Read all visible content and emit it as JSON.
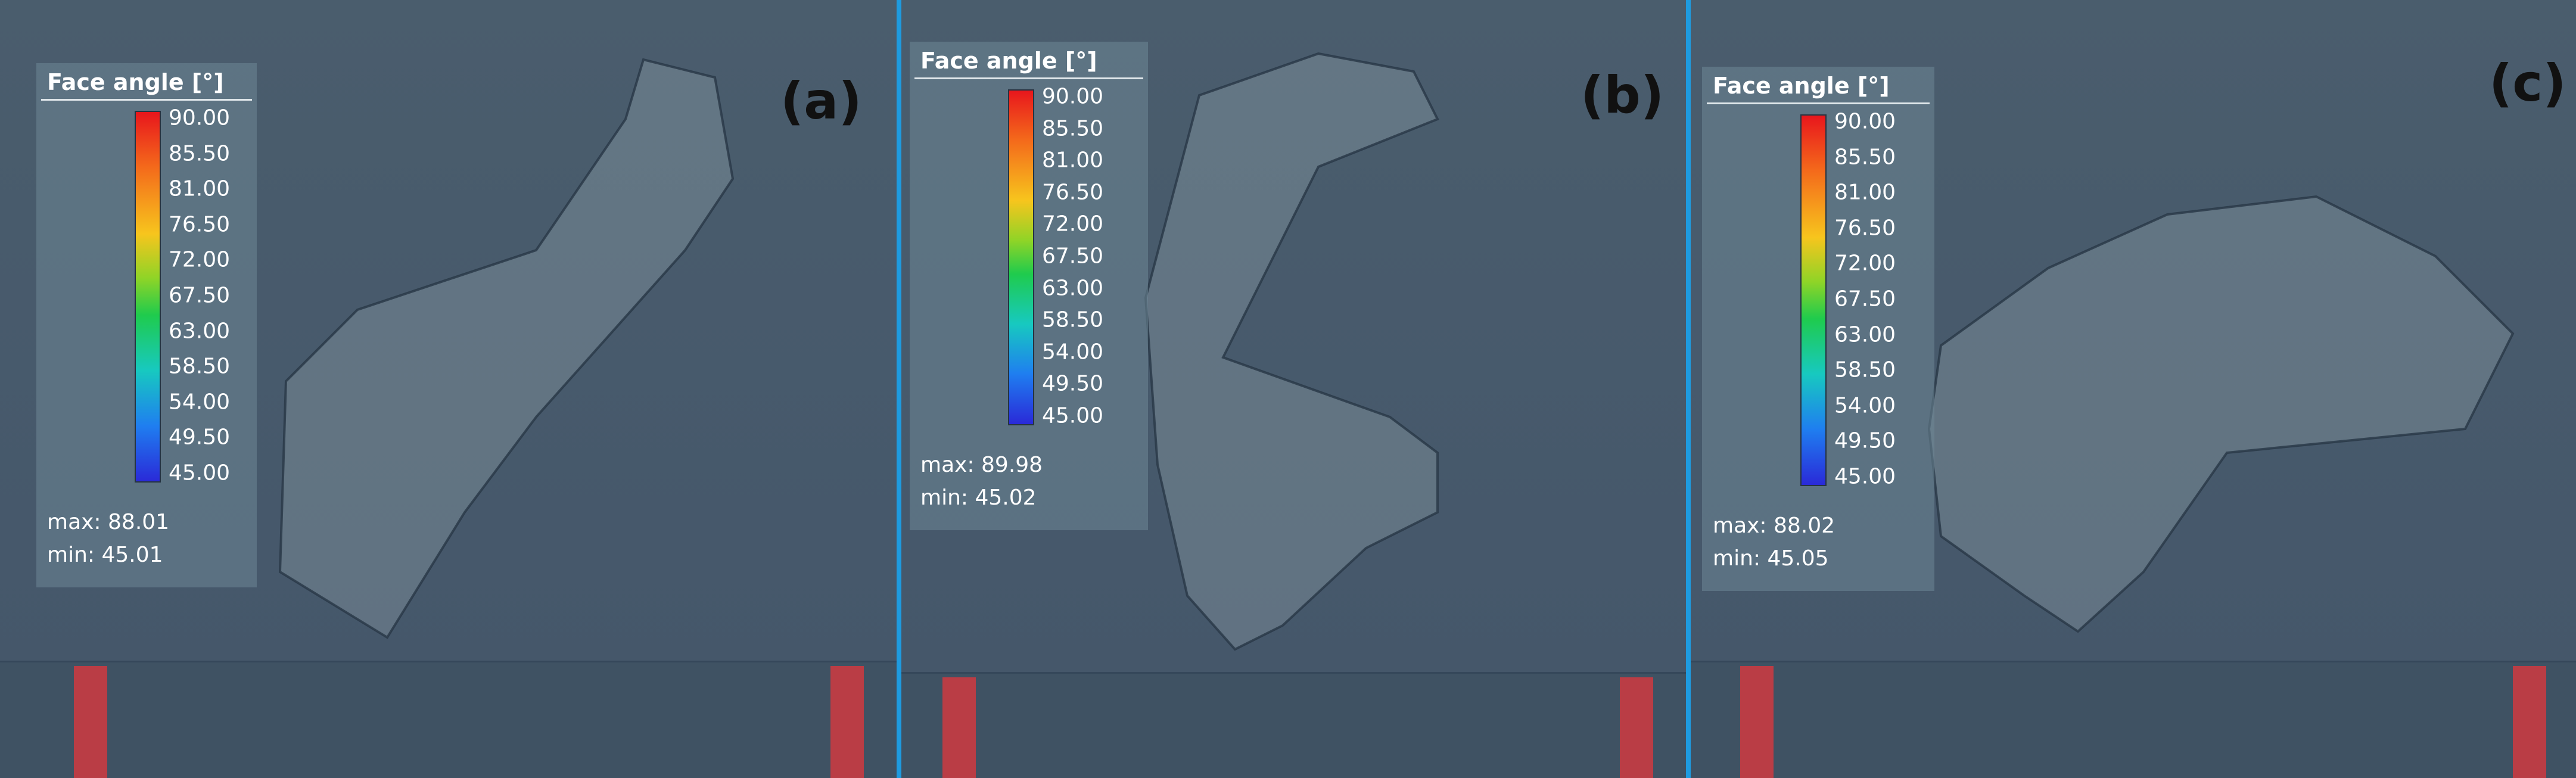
{
  "panels": [
    {
      "label": "(a)",
      "legend_title": "Face angle [°]",
      "ticks": [
        "90.00",
        "85.50",
        "81.00",
        "76.50",
        "72.00",
        "67.50",
        "63.00",
        "58.50",
        "54.00",
        "49.50",
        "45.00"
      ],
      "max": "max: 88.01",
      "min": "min: 45.01"
    },
    {
      "label": "(b)",
      "legend_title": "Face angle [°]",
      "ticks": [
        "90.00",
        "85.50",
        "81.00",
        "76.50",
        "72.00",
        "67.50",
        "63.00",
        "58.50",
        "54.00",
        "49.50",
        "45.00"
      ],
      "max": "max: 89.98",
      "min": "min: 45.02"
    },
    {
      "label": "(c)",
      "legend_title": "Face angle [°]",
      "ticks": [
        "90.00",
        "85.50",
        "81.00",
        "76.50",
        "72.00",
        "67.50",
        "63.00",
        "58.50",
        "54.00",
        "49.50",
        "45.00"
      ],
      "max": "max: 88.02",
      "min": "min: 45.05"
    }
  ]
}
